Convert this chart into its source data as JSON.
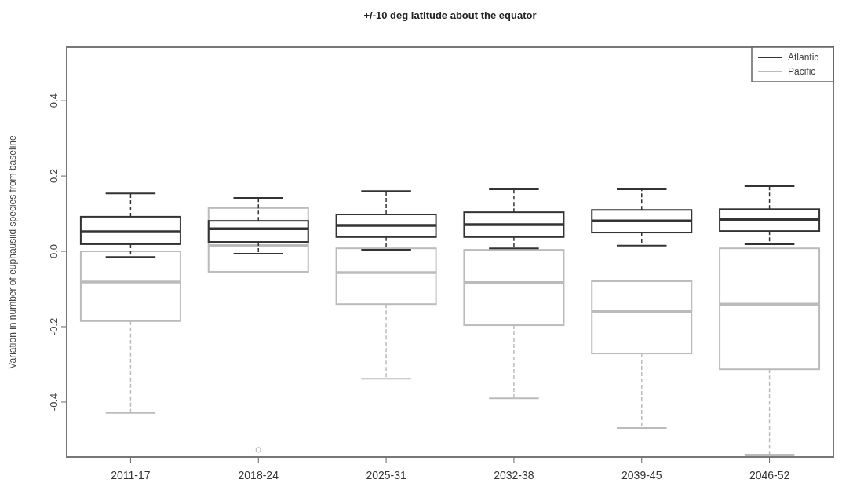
{
  "chart_data": {
    "type": "box",
    "title": "+/-10 deg latitude about the equator",
    "ylabel": "Variation in number of euphausiid species from baseline",
    "categories": [
      "2011-17",
      "2018-24",
      "2025-31",
      "2032-38",
      "2039-45",
      "2046-52"
    ],
    "ylim": [
      -0.546,
      0.542
    ],
    "yticks": [
      -0.4,
      -0.2,
      {
        "value": 0,
        "label": "0.0"
      },
      0.2,
      0.4
    ],
    "legend": "top right",
    "grid": false,
    "series": [
      {
        "name": "Atlantic",
        "color": "#333333",
        "boxes": [
          {
            "low": -0.015,
            "q1": 0.019,
            "median": 0.052,
            "q3": 0.092,
            "high": 0.154
          },
          {
            "low": -0.006,
            "q1": 0.025,
            "median": 0.06,
            "q3": 0.081,
            "high": 0.142
          },
          {
            "low": 0.004,
            "q1": 0.038,
            "median": 0.069,
            "q3": 0.098,
            "high": 0.16
          },
          {
            "low": 0.008,
            "q1": 0.038,
            "median": 0.071,
            "q3": 0.104,
            "high": 0.165
          },
          {
            "low": 0.015,
            "q1": 0.05,
            "median": 0.081,
            "q3": 0.11,
            "high": 0.165
          },
          {
            "low": 0.019,
            "q1": 0.054,
            "median": 0.085,
            "q3": 0.112,
            "high": 0.173
          }
        ]
      },
      {
        "name": "Pacific",
        "color": "#bbbbbb",
        "boxes": [
          {
            "low": -0.429,
            "q1": -0.185,
            "median": -0.081,
            "q3": 0.0,
            "high": 0.0
          },
          {
            "low": -0.054,
            "q1": -0.054,
            "median": 0.015,
            "q3": 0.115,
            "high": 0.115,
            "outliers": [
              -0.527
            ]
          },
          {
            "low": -0.338,
            "q1": -0.14,
            "median": -0.056,
            "q3": 0.008,
            "high": 0.008
          },
          {
            "low": -0.39,
            "q1": -0.196,
            "median": -0.083,
            "q3": 0.004,
            "high": 0.004
          },
          {
            "low": -0.469,
            "q1": -0.271,
            "median": -0.16,
            "q3": -0.079,
            "high": -0.079
          },
          {
            "low": -0.54,
            "q1": -0.313,
            "median": -0.14,
            "q3": 0.008,
            "high": 0.008
          }
        ]
      }
    ]
  }
}
